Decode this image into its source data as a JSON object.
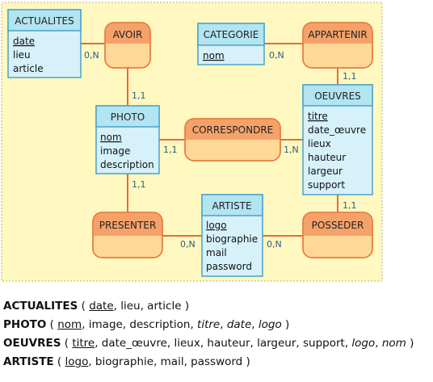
{
  "diagram": {
    "entities": {
      "actualites": {
        "title": "ACTUALITES",
        "attrs": [
          "date",
          "lieu",
          "article"
        ],
        "key": [
          "date"
        ]
      },
      "categorie": {
        "title": "CATEGORIE",
        "attrs": [
          "nom"
        ],
        "key": [
          "nom"
        ]
      },
      "photo": {
        "title": "PHOTO",
        "attrs": [
          "nom",
          "image",
          "description"
        ],
        "key": [
          "nom"
        ]
      },
      "oeuvres": {
        "title": "OEUVRES",
        "attrs": [
          "titre",
          "date_œuvre",
          "lieux",
          "hauteur",
          "largeur",
          "support"
        ],
        "key": [
          "titre"
        ]
      },
      "artiste": {
        "title": "ARTISTE",
        "attrs": [
          "logo",
          "biographie",
          "mail",
          "password"
        ],
        "key": [
          "logo"
        ]
      }
    },
    "relations": {
      "avoir": "AVOIR",
      "appartenir": "APPARTENIR",
      "correspondre": "CORRESPONDRE",
      "presenter": "PRESENTER",
      "posseder": "POSSEDER"
    },
    "cardinalities": {
      "actualites_avoir": "0,N",
      "avoir_photo": "1,1",
      "categorie_appartenir": "0,N",
      "appartenir_oeuvres": "1,1",
      "photo_correspondre": "1,1",
      "correspondre_oeuvres": "1,N",
      "photo_presenter": "1,1",
      "presenter_artiste": "0,N",
      "artiste_posseder": "0,N",
      "posseder_oeuvres": "1,1"
    },
    "colors": {
      "canvas_bg": "#fff8c0",
      "entity_fill": "#d6f1f9",
      "entity_header": "#b2e4f2",
      "entity_border": "#4aa3c8",
      "relation_fill": "#ffd898",
      "relation_header": "#f5a26a",
      "relation_border": "#e87a3c",
      "link": "#e86a3a"
    }
  },
  "schema": [
    {
      "name": "ACTUALITES",
      "open": " ( ",
      "parts": [
        {
          "t": "date",
          "s": "k"
        },
        {
          "t": ", lieu, article",
          "s": ""
        }
      ],
      "close": " )"
    },
    {
      "name": "PHOTO",
      "open": " ( ",
      "parts": [
        {
          "t": "nom",
          "s": "k"
        },
        {
          "t": ", image, description, ",
          "s": ""
        },
        {
          "t": "titre",
          "s": "fk"
        },
        {
          "t": ", ",
          "s": ""
        },
        {
          "t": "date",
          "s": "fk"
        },
        {
          "t": ", ",
          "s": ""
        },
        {
          "t": "logo",
          "s": "fk"
        }
      ],
      "close": " )"
    },
    {
      "name": "OEUVRES",
      "open": " ( ",
      "parts": [
        {
          "t": "titre",
          "s": "k"
        },
        {
          "t": ", date_œuvre, lieux, hauteur, largeur, support, ",
          "s": ""
        },
        {
          "t": "logo",
          "s": "fk"
        },
        {
          "t": ", ",
          "s": ""
        },
        {
          "t": "nom",
          "s": "fk"
        }
      ],
      "close": " )"
    },
    {
      "name": "ARTISTE",
      "open": " ( ",
      "parts": [
        {
          "t": "logo",
          "s": "k"
        },
        {
          "t": ", biographie, mail, password",
          "s": ""
        }
      ],
      "close": " )"
    }
  ]
}
